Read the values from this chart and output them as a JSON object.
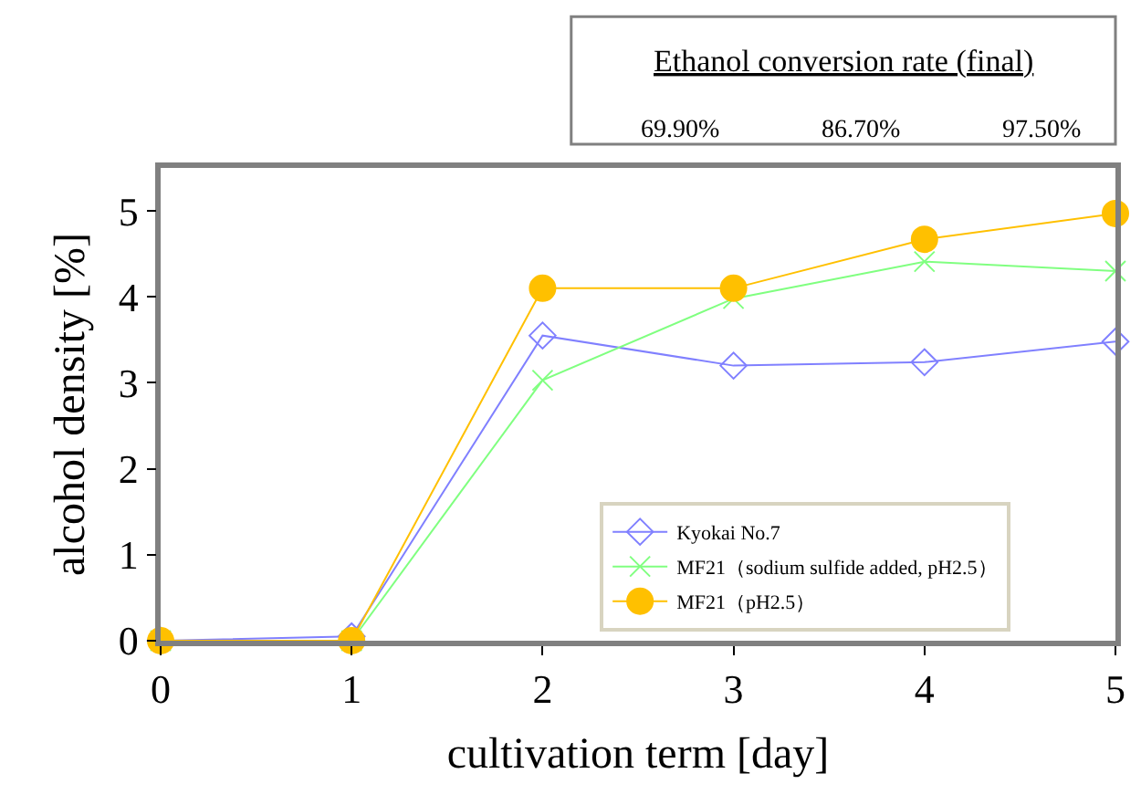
{
  "chart_data": {
    "type": "line",
    "xlabel": "cultivation term [day]",
    "ylabel": "alcohol density [%]",
    "x": [
      0,
      1,
      2,
      3,
      4,
      5
    ],
    "xlim": [
      0,
      5
    ],
    "xticks": [
      0,
      1,
      2,
      3,
      4,
      5
    ],
    "ylim": [
      0,
      5.5
    ],
    "yticks": [
      0,
      1,
      2,
      3,
      4,
      5
    ],
    "legend": "bottom right",
    "line_style": "solid",
    "series": [
      {
        "name": "Kyokai No.7",
        "color": "#8080ff",
        "marker": "diamond",
        "values": [
          0,
          0.05,
          3.55,
          3.2,
          3.24,
          3.48
        ]
      },
      {
        "name": "MF21（sodium sulfide added, pH2.5）",
        "color": "#80ff80",
        "marker": "cross",
        "values": [
          0,
          0,
          3.03,
          3.98,
          4.41,
          4.3
        ]
      },
      {
        "name": "MF21（pH2.5）",
        "color": "#ffc000",
        "marker": "circle",
        "values": [
          0,
          0,
          4.1,
          4.1,
          4.67,
          4.97
        ]
      }
    ],
    "annotations": [
      "Ethanol conversion rate (final)",
      "69.90%",
      "86.70%",
      "97.50%"
    ]
  }
}
